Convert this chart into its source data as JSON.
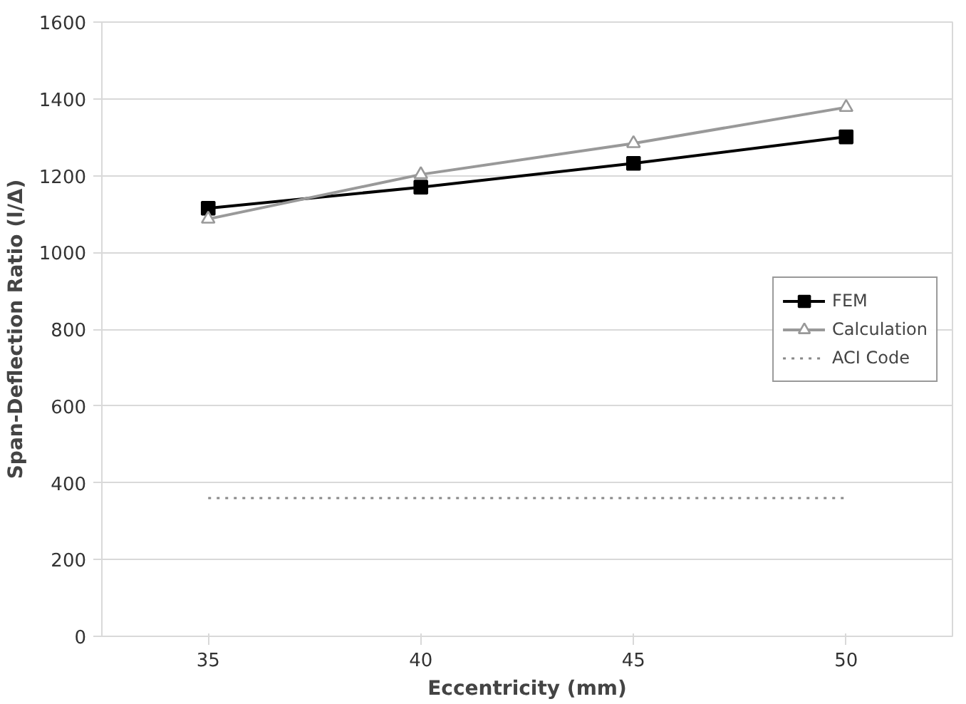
{
  "chart_data": {
    "type": "line",
    "xlabel": "Eccentricity (mm)",
    "ylabel": "Span-Deflection Ratio (l/Δ)",
    "categories": [
      "35",
      "40",
      "45",
      "50"
    ],
    "series": [
      {
        "name": "FEM",
        "color": "#000000",
        "values": [
          1115,
          1170,
          1232,
          1301
        ],
        "marker": "square",
        "line_style": "solid"
      },
      {
        "name": "Calculation",
        "color": "#999999",
        "values": [
          1087,
          1203,
          1284,
          1378
        ],
        "marker": "triangle",
        "line_style": "solid"
      },
      {
        "name": "ACI Code",
        "color": "#888888",
        "values": [
          360,
          360,
          360,
          360
        ],
        "marker": "none",
        "line_style": "dotted"
      }
    ],
    "ylim": [
      0,
      1600
    ],
    "yticks": [
      0,
      200,
      400,
      600,
      800,
      1000,
      1200,
      1400,
      1600
    ],
    "grid": "y",
    "legend": "right"
  }
}
